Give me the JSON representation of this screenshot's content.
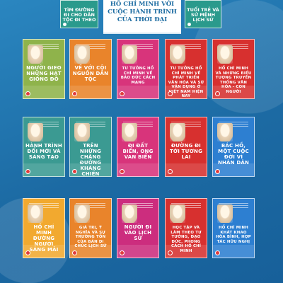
{
  "top": {
    "left_book_title": "TÌM ĐƯỜNG ĐI CHO DÂN TỘC ĐI THEO",
    "center_title": "HỒ CHÍ MINH VỚI CUỘC HÀNH TRÌNH CỦA THỜI ĐẠI",
    "right_book_title": "TUỔI TRẺ VÀ SỨ MỆNH LỊCH SỬ"
  },
  "books": [
    {
      "title": "NGƯỜI GIEO NHỮNG HẠT GIỐNG ĐỎ",
      "color": "#8fb34b"
    },
    {
      "title": "VỀ VỚI CỘI NGUỒN DÂN TỘC",
      "color": "#e9842b"
    },
    {
      "title": "TƯ TƯỞNG HỒ CHÍ MINH VỀ BẢO ĐỨC CÁCH MẠNG",
      "color": "#d8347b"
    },
    {
      "title": "TƯ TƯỞNG HỒ CHÍ MINH VỀ PHÁT TRIỂN VĂN HÓA VÀ SỨ VẬN DỤNG Ở VIỆT NAM HIỆN NAY",
      "color": "#d7302f"
    },
    {
      "title": "HỒ CHÍ MINH VÀ NHỮNG BIỂU TƯỢNG TRUYỀN THỐNG VĂN HÓA - CON NGƯỜI",
      "color": "#d7302f"
    },
    {
      "title": "HÀNH TRÌNH ĐỔI MỚI VÀ SÁNG TẠO",
      "color": "#3b9a92"
    },
    {
      "title": "TRÊN NHỮNG CHẶNG ĐƯỜNG KHÁNG CHIẾN",
      "color": "#3b9a92"
    },
    {
      "title": "ĐI ĐẤT BIỂN, ONG VAN BIỂN",
      "color": "#d8347b"
    },
    {
      "title": "ĐƯỜNG ĐI TỚI TƯƠNG LAI",
      "color": "#d7302f"
    },
    {
      "title": "BÁC HỒ, MỘT CUỘC ĐỜI VÌ NHÂN DÂN",
      "color": "#2d7fd1"
    },
    {
      "title": "HỒ CHÍ MINH ĐƯỜNG NGƯỜI SÁNG MÃI",
      "color": "#f2a92f"
    },
    {
      "title": "GIÁ TRỊ, Ý NGHĨA VÀ SỰ TRƯỜNG TỒN CỦA BẢN DI CHÚC LỊCH SỬ",
      "color": "#e9842b"
    },
    {
      "title": "NGƯỜI ĐI VÀO LỊCH SỬ",
      "color": "#cc2d7e"
    },
    {
      "title": "HỌC TẬP VÀ LÀM THEO TƯ TƯỞNG, ĐẠO ĐỨC, PHONG CÁCH HỒ CHÍ MINH",
      "color": "#d7302f"
    },
    {
      "title": "HỒ CHÍ MINH KHÁT KHAO HÒA BÌNH, HỢP TÁC HỮU NGHỊ",
      "color": "#2d7fd1"
    }
  ]
}
